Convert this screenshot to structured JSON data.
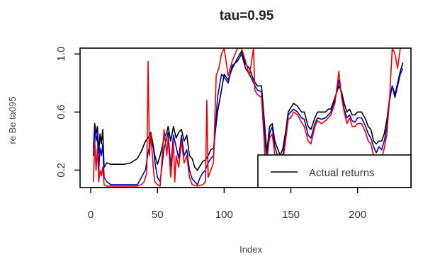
{
  "chart_data": {
    "type": "line",
    "title": "tau=0.95",
    "xlabel": "Index",
    "ylabel": "re Be ta095",
    "xlim": [
      -8,
      240
    ],
    "ylim": [
      0.08,
      1.04
    ],
    "x_ticks": [
      "0",
      "50",
      "100",
      "150",
      "200"
    ],
    "x_tick_values": [
      0,
      50,
      100,
      150,
      200
    ],
    "y_ticks": [
      "0.2",
      "0.6",
      "1.0"
    ],
    "y_tick_values": [
      0.2,
      0.6,
      1.0
    ],
    "legend": {
      "position": "bottom-right",
      "entries": [
        "Actual returns"
      ]
    },
    "series": [
      {
        "name": "Actual returns",
        "color": "#000000",
        "points": [
          [
            2,
            0.35
          ],
          [
            3,
            0.52
          ],
          [
            4,
            0.45
          ],
          [
            5,
            0.5
          ],
          [
            6,
            0.32
          ],
          [
            7,
            0.45
          ],
          [
            8,
            0.38
          ],
          [
            9,
            0.48
          ],
          [
            10,
            0.22
          ],
          [
            12,
            0.25
          ],
          [
            15,
            0.24
          ],
          [
            20,
            0.24
          ],
          [
            25,
            0.24
          ],
          [
            30,
            0.25
          ],
          [
            35,
            0.28
          ],
          [
            38,
            0.33
          ],
          [
            41,
            0.4
          ],
          [
            43,
            0.42
          ],
          [
            45,
            0.46
          ],
          [
            47,
            0.36
          ],
          [
            48,
            0.3
          ],
          [
            50,
            0.24
          ],
          [
            52,
            0.3
          ],
          [
            55,
            0.42
          ],
          [
            57,
            0.46
          ],
          [
            58,
            0.5
          ],
          [
            60,
            0.4
          ],
          [
            62,
            0.5
          ],
          [
            64,
            0.42
          ],
          [
            66,
            0.46
          ],
          [
            68,
            0.48
          ],
          [
            70,
            0.4
          ],
          [
            72,
            0.44
          ],
          [
            74,
            0.3
          ],
          [
            76,
            0.28
          ],
          [
            78,
            0.22
          ],
          [
            80,
            0.2
          ],
          [
            82,
            0.23
          ],
          [
            84,
            0.26
          ],
          [
            86,
            0.27
          ],
          [
            88,
            0.3
          ],
          [
            90,
            0.34
          ],
          [
            92,
            0.35
          ],
          [
            95,
            0.6
          ],
          [
            98,
            0.75
          ],
          [
            100,
            0.86
          ],
          [
            103,
            0.82
          ],
          [
            106,
            0.9
          ],
          [
            110,
            0.97
          ],
          [
            113,
            1.02
          ],
          [
            116,
            0.93
          ],
          [
            119,
            0.9
          ],
          [
            122,
            0.82
          ],
          [
            125,
            0.78
          ],
          [
            128,
            0.78
          ],
          [
            130,
            0.55
          ],
          [
            132,
            0.32
          ],
          [
            134,
            0.5
          ],
          [
            136,
            0.52
          ],
          [
            138,
            0.4
          ],
          [
            140,
            0.35
          ],
          [
            142,
            0.3
          ],
          [
            144,
            0.35
          ],
          [
            146,
            0.46
          ],
          [
            148,
            0.6
          ],
          [
            150,
            0.63
          ],
          [
            152,
            0.66
          ],
          [
            155,
            0.64
          ],
          [
            158,
            0.6
          ],
          [
            160,
            0.6
          ],
          [
            163,
            0.5
          ],
          [
            165,
            0.48
          ],
          [
            168,
            0.56
          ],
          [
            170,
            0.6
          ],
          [
            173,
            0.6
          ],
          [
            176,
            0.6
          ],
          [
            178,
            0.62
          ],
          [
            180,
            0.62
          ],
          [
            183,
            0.7
          ],
          [
            186,
            0.78
          ],
          [
            188,
            0.74
          ],
          [
            190,
            0.66
          ],
          [
            192,
            0.6
          ],
          [
            194,
            0.62
          ],
          [
            196,
            0.58
          ],
          [
            198,
            0.58
          ],
          [
            200,
            0.6
          ],
          [
            203,
            0.6
          ],
          [
            206,
            0.55
          ],
          [
            208,
            0.5
          ],
          [
            210,
            0.48
          ],
          [
            212,
            0.4
          ],
          [
            214,
            0.38
          ],
          [
            216,
            0.4
          ],
          [
            218,
            0.4
          ],
          [
            220,
            0.45
          ],
          [
            222,
            0.55
          ],
          [
            224,
            0.7
          ],
          [
            226,
            0.78
          ],
          [
            228,
            0.72
          ],
          [
            230,
            0.8
          ],
          [
            232,
            0.88
          ],
          [
            234,
            0.94
          ]
        ]
      },
      {
        "name": "",
        "color": "#0000cc",
        "points": [
          [
            2,
            0.3
          ],
          [
            3,
            0.48
          ],
          [
            4,
            0.4
          ],
          [
            5,
            0.45
          ],
          [
            6,
            0.2
          ],
          [
            7,
            0.35
          ],
          [
            8,
            0.3
          ],
          [
            9,
            0.38
          ],
          [
            10,
            0.15
          ],
          [
            12,
            0.12
          ],
          [
            15,
            0.1
          ],
          [
            20,
            0.1
          ],
          [
            25,
            0.1
          ],
          [
            30,
            0.1
          ],
          [
            35,
            0.1
          ],
          [
            38,
            0.15
          ],
          [
            41,
            0.2
          ],
          [
            43,
            0.32
          ],
          [
            45,
            0.4
          ],
          [
            47,
            0.35
          ],
          [
            48,
            0.26
          ],
          [
            50,
            0.15
          ],
          [
            52,
            0.12
          ],
          [
            55,
            0.35
          ],
          [
            57,
            0.42
          ],
          [
            58,
            0.46
          ],
          [
            60,
            0.22
          ],
          [
            62,
            0.44
          ],
          [
            64,
            0.36
          ],
          [
            66,
            0.28
          ],
          [
            68,
            0.44
          ],
          [
            70,
            0.3
          ],
          [
            72,
            0.34
          ],
          [
            74,
            0.2
          ],
          [
            76,
            0.14
          ],
          [
            78,
            0.12
          ],
          [
            80,
            0.1
          ],
          [
            82,
            0.15
          ],
          [
            84,
            0.18
          ],
          [
            86,
            0.2
          ],
          [
            88,
            0.25
          ],
          [
            90,
            0.28
          ],
          [
            92,
            0.3
          ],
          [
            95,
            0.7
          ],
          [
            98,
            0.86
          ],
          [
            100,
            0.84
          ],
          [
            103,
            0.8
          ],
          [
            106,
            0.92
          ],
          [
            110,
            0.95
          ],
          [
            113,
            1.0
          ],
          [
            116,
            0.9
          ],
          [
            119,
            0.86
          ],
          [
            122,
            0.8
          ],
          [
            125,
            0.75
          ],
          [
            128,
            0.74
          ],
          [
            130,
            0.5
          ],
          [
            132,
            0.25
          ],
          [
            134,
            0.45
          ],
          [
            136,
            0.5
          ],
          [
            138,
            0.36
          ],
          [
            140,
            0.3
          ],
          [
            142,
            0.25
          ],
          [
            144,
            0.3
          ],
          [
            146,
            0.42
          ],
          [
            148,
            0.58
          ],
          [
            150,
            0.6
          ],
          [
            152,
            0.62
          ],
          [
            155,
            0.6
          ],
          [
            158,
            0.56
          ],
          [
            160,
            0.55
          ],
          [
            163,
            0.44
          ],
          [
            165,
            0.42
          ],
          [
            168,
            0.52
          ],
          [
            170,
            0.56
          ],
          [
            173,
            0.55
          ],
          [
            176,
            0.56
          ],
          [
            178,
            0.58
          ],
          [
            180,
            0.6
          ],
          [
            183,
            0.68
          ],
          [
            186,
            0.82
          ],
          [
            188,
            0.72
          ],
          [
            190,
            0.62
          ],
          [
            192,
            0.56
          ],
          [
            194,
            0.58
          ],
          [
            196,
            0.54
          ],
          [
            198,
            0.53
          ],
          [
            200,
            0.56
          ],
          [
            203,
            0.56
          ],
          [
            206,
            0.5
          ],
          [
            208,
            0.45
          ],
          [
            210,
            0.42
          ],
          [
            212,
            0.36
          ],
          [
            214,
            0.32
          ],
          [
            216,
            0.36
          ],
          [
            218,
            0.34
          ],
          [
            220,
            0.4
          ],
          [
            222,
            0.5
          ],
          [
            224,
            0.68
          ],
          [
            226,
            0.78
          ],
          [
            228,
            0.7
          ],
          [
            230,
            0.78
          ],
          [
            232,
            0.86
          ],
          [
            234,
            0.9
          ]
        ]
      },
      {
        "name": "",
        "color": "#ee0000",
        "points": [
          [
            2,
            0.12
          ],
          [
            3,
            0.4
          ],
          [
            4,
            0.2
          ],
          [
            5,
            0.35
          ],
          [
            6,
            0.12
          ],
          [
            7,
            0.2
          ],
          [
            8,
            0.16
          ],
          [
            9,
            0.22
          ],
          [
            10,
            0.1
          ],
          [
            12,
            0.09
          ],
          [
            15,
            0.09
          ],
          [
            20,
            0.09
          ],
          [
            25,
            0.09
          ],
          [
            30,
            0.09
          ],
          [
            35,
            0.09
          ],
          [
            38,
            0.1
          ],
          [
            40,
            0.12
          ],
          [
            42,
            0.18
          ],
          [
            43,
            0.95
          ],
          [
            44,
            0.3
          ],
          [
            45,
            0.45
          ],
          [
            47,
            0.2
          ],
          [
            48,
            0.12
          ],
          [
            50,
            0.1
          ],
          [
            52,
            0.09
          ],
          [
            55,
            0.48
          ],
          [
            57,
            0.3
          ],
          [
            58,
            0.42
          ],
          [
            60,
            0.15
          ],
          [
            62,
            0.4
          ],
          [
            63,
            0.12
          ],
          [
            64,
            0.3
          ],
          [
            66,
            0.22
          ],
          [
            68,
            0.4
          ],
          [
            70,
            0.25
          ],
          [
            72,
            0.3
          ],
          [
            74,
            0.15
          ],
          [
            76,
            0.1
          ],
          [
            80,
            0.09
          ],
          [
            84,
            0.1
          ],
          [
            86,
            0.12
          ],
          [
            87,
            0.68
          ],
          [
            88,
            0.15
          ],
          [
            90,
            0.2
          ],
          [
            92,
            0.25
          ],
          [
            94,
            0.85
          ],
          [
            96,
            0.9
          ],
          [
            98,
            1.0
          ],
          [
            100,
            1.04
          ],
          [
            103,
            0.85
          ],
          [
            106,
            0.95
          ],
          [
            110,
            1.04
          ],
          [
            113,
            1.04
          ],
          [
            116,
            0.95
          ],
          [
            119,
            0.85
          ],
          [
            122,
            1.04
          ],
          [
            123,
            0.75
          ],
          [
            125,
            0.72
          ],
          [
            128,
            0.7
          ],
          [
            130,
            0.4
          ],
          [
            131,
            0.2
          ],
          [
            134,
            0.42
          ],
          [
            136,
            0.45
          ],
          [
            138,
            0.3
          ],
          [
            140,
            0.25
          ],
          [
            142,
            0.2
          ],
          [
            144,
            0.26
          ],
          [
            146,
            0.4
          ],
          [
            148,
            0.55
          ],
          [
            150,
            0.56
          ],
          [
            152,
            0.6
          ],
          [
            155,
            0.58
          ],
          [
            158,
            0.53
          ],
          [
            160,
            0.5
          ],
          [
            163,
            0.4
          ],
          [
            165,
            0.38
          ],
          [
            168,
            0.5
          ],
          [
            170,
            0.54
          ],
          [
            173,
            0.52
          ],
          [
            176,
            0.54
          ],
          [
            178,
            0.56
          ],
          [
            180,
            0.58
          ],
          [
            183,
            0.66
          ],
          [
            186,
            0.88
          ],
          [
            188,
            0.7
          ],
          [
            190,
            0.6
          ],
          [
            192,
            0.52
          ],
          [
            194,
            0.56
          ],
          [
            196,
            0.5
          ],
          [
            198,
            0.5
          ],
          [
            200,
            0.52
          ],
          [
            203,
            0.52
          ],
          [
            206,
            0.46
          ],
          [
            208,
            0.4
          ],
          [
            210,
            0.38
          ],
          [
            212,
            0.3
          ],
          [
            214,
            0.26
          ],
          [
            216,
            0.3
          ],
          [
            218,
            0.28
          ],
          [
            220,
            0.35
          ],
          [
            222,
            0.45
          ],
          [
            224,
            0.7
          ],
          [
            226,
            1.04
          ],
          [
            228,
            1.0
          ],
          [
            230,
            0.9
          ],
          [
            232,
            1.04
          ],
          [
            234,
            1.04
          ]
        ]
      }
    ]
  }
}
